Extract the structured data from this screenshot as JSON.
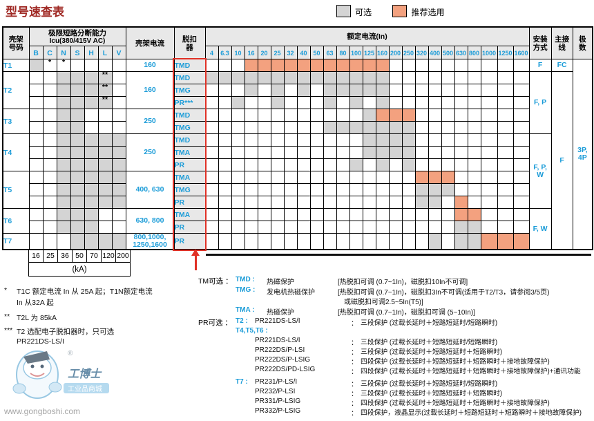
{
  "title": "型号速查表",
  "legend": {
    "optional_label": "可选",
    "recommended_label": "推荐选用"
  },
  "colors": {
    "blue": "#1b9cd8",
    "orange": "#f3a17f",
    "gray": "#d4d4d4",
    "header_bg": "#e8e8e8",
    "red": "#e03126",
    "title_red": "#a02a25"
  },
  "header": {
    "frame_no": "壳架号码",
    "icu_line1": "极限短路分断能力",
    "icu_line2": "Icu(380/415V AC)",
    "icu_cols": [
      "B",
      "C",
      "N",
      "S",
      "H",
      "L",
      "V"
    ],
    "frame_current": "壳架电流",
    "trip_unit": "脱扣器",
    "rated_current": "额定电流(In)",
    "rated_cols": [
      "4",
      "6.3",
      "10",
      "16",
      "20",
      "25",
      "32",
      "40",
      "50",
      "63",
      "80",
      "100",
      "125",
      "160",
      "200",
      "250",
      "320",
      "400",
      "500",
      "630",
      "800",
      "1000",
      "1250",
      "1600"
    ],
    "mounting": "安装方式",
    "wiring": "主接线",
    "poles": "极数"
  },
  "frames": [
    {
      "id": "T1",
      "current": [
        "160"
      ],
      "icu_gray": [
        "B"
      ],
      "icu_marks": {
        "C": "*",
        "N": "*"
      },
      "rows": [
        {
          "trip": "TMD",
          "gray": [],
          "orange": [
            "16",
            "20",
            "25",
            "32",
            "40",
            "50",
            "63",
            "80",
            "100",
            "125",
            "160"
          ]
        }
      ]
    },
    {
      "id": "T2",
      "current": [
        "160"
      ],
      "icu_gray": [
        "N",
        "S",
        "H",
        "L"
      ],
      "icu_marks": {
        "L": "**"
      },
      "rows": [
        {
          "trip": "TMD",
          "gray": [
            "4",
            "6.3",
            "10",
            "16",
            "20",
            "25",
            "32",
            "40",
            "50",
            "63",
            "80",
            "100",
            "125",
            "160"
          ],
          "orange": []
        },
        {
          "trip": "TMG",
          "gray": [
            "16",
            "25",
            "40",
            "63",
            "80",
            "100",
            "125",
            "160"
          ],
          "orange": []
        },
        {
          "trip": "PR***",
          "gray": [
            "10",
            "25",
            "63",
            "100",
            "160"
          ],
          "orange": []
        }
      ]
    },
    {
      "id": "T3",
      "current": [
        "250"
      ],
      "icu_gray": [
        "N",
        "S"
      ],
      "icu_marks": {},
      "rows": [
        {
          "trip": "TMD",
          "gray": [
            "125"
          ],
          "orange": [
            "160",
            "200",
            "250"
          ]
        },
        {
          "trip": "TMG",
          "gray": [
            "63",
            "80",
            "100",
            "125",
            "160",
            "200",
            "250"
          ],
          "orange": []
        }
      ]
    },
    {
      "id": "T4",
      "current": [
        "250"
      ],
      "icu_gray": [
        "N",
        "S",
        "H",
        "L",
        "V"
      ],
      "icu_marks": {},
      "rows": [
        {
          "trip": "TMD",
          "gray": [
            "125",
            "160",
            "200",
            "250"
          ],
          "orange": []
        },
        {
          "trip": "TMA",
          "gray": [
            "125",
            "160",
            "200",
            "250"
          ],
          "orange": []
        },
        {
          "trip": "PR",
          "gray": [
            "100",
            "160",
            "250"
          ],
          "orange": []
        }
      ]
    },
    {
      "id": "T5",
      "current": [
        "400, 630"
      ],
      "icu_gray": [
        "N",
        "S",
        "H",
        "L",
        "V"
      ],
      "icu_marks": {},
      "rows": [
        {
          "trip": "TMA",
          "gray": [],
          "orange": [
            "320",
            "400",
            "500"
          ]
        },
        {
          "trip": "TMG",
          "gray": [
            "320",
            "400",
            "500"
          ],
          "orange": []
        },
        {
          "trip": "PR",
          "gray": [
            "320",
            "400"
          ],
          "orange": [
            "630"
          ]
        }
      ]
    },
    {
      "id": "T6",
      "current": [
        "630, 800"
      ],
      "icu_gray": [
        "N",
        "S",
        "H"
      ],
      "icu_marks": {},
      "rows": [
        {
          "trip": "TMA",
          "gray": [],
          "orange": [
            "630",
            "800"
          ]
        },
        {
          "trip": "PR",
          "gray": [
            "630",
            "800"
          ],
          "orange": []
        }
      ]
    },
    {
      "id": "T7",
      "current": [
        "800,1000,",
        "1250,1600"
      ],
      "icu_gray": [
        "S",
        "H",
        "L",
        "V"
      ],
      "icu_marks": {},
      "rows": [
        {
          "trip": "PR",
          "gray": [
            "400",
            "630",
            "800"
          ],
          "orange": [
            "1000",
            "1250",
            "1600"
          ]
        }
      ]
    }
  ],
  "mounting_groups": [
    {
      "frames": "T1",
      "value": "F"
    },
    {
      "frames": "T2,T3",
      "value": "F, P"
    },
    {
      "frames": "T4,T5",
      "value": "F, P, W"
    },
    {
      "frames": "T6,T7",
      "value": "F, W"
    }
  ],
  "wiring_groups": [
    {
      "frames": "T1",
      "value": "FC"
    },
    {
      "frames": "T2-T7",
      "value": "F"
    }
  ],
  "poles_value": "3P, 4P",
  "ka_scale": {
    "values": [
      "16",
      "25",
      "36",
      "50",
      "70",
      "120",
      "200"
    ],
    "unit": "(kA)"
  },
  "footnotes": [
    {
      "mark": "*",
      "lines": [
        "T1C 额定电流 In 从 25A 起；T1N额定电流",
        "In 从32A 起"
      ]
    },
    {
      "mark": "**",
      "lines": [
        "T2L 为 85kA"
      ]
    },
    {
      "mark": "***",
      "lines": [
        "T2 选配电子脱扣器时，只可选",
        "PR221DS-LS/I"
      ]
    }
  ],
  "tm_options": {
    "label": "TM可选 ：",
    "items": [
      {
        "name": "TMD :",
        "type": "热磁保护",
        "detail": "[热脱扣可调 (0.7~1In)，磁脱扣10In不可调]",
        "detail2": ""
      },
      {
        "name": "TMG :",
        "type": "发电机热磁保护",
        "detail": "[热脱扣可调 (0.7~1In)，磁脱扣3In不可调(适用于T2/T3，请参阅3/5页)",
        "detail2": "或磁脱扣可调2.5~5In(T5)]"
      },
      {
        "name": "TMA :",
        "type": "热磁保护",
        "detail": "[热脱扣可调 (0.7~1In)，磁脱扣可调 (5~10In)]",
        "detail2": ""
      }
    ]
  },
  "pr_options": {
    "label": "PR可选 ：",
    "t2_tag": "T2 :",
    "t2_name": "PR221DS-LS/I",
    "t2_desc": "三段保护 (过载长延时＋短路短延时/短路瞬时)",
    "groups": [
      {
        "tag": "T4,T5,T6 :",
        "items": [
          {
            "name": "PR221DS-LS/I",
            "desc": "三段保护 (过载长延时＋短路短延时/短路瞬时)"
          },
          {
            "name": "PR222DS/P-LSI",
            "desc": "三段保护 (过载长延时＋短路短延时＋短路瞬时)"
          },
          {
            "name": "PR222DS/P-LSIG",
            "desc": "四段保护 (过载长延时＋短路短延时＋短路瞬时＋接地故障保护)"
          },
          {
            "name": "PR222DS/PD-LSIG",
            "desc": "四段保护 (过载长延时＋短路短延时＋短路瞬时＋接地故障保护)+通讯功能"
          }
        ]
      },
      {
        "tag": "T7 :",
        "items": [
          {
            "name": "PR231/P-LS/I",
            "desc": "三段保护 (过载长延时＋短路短延时/短路瞬时)"
          },
          {
            "name": "PR232/P-LSI",
            "desc": "三段保护 (过载长延时＋短路短延时＋短路瞬时)"
          },
          {
            "name": "PR331/P-LSIG",
            "desc": "四段保护 (过载长延时＋短路短延时＋短路瞬时＋接地故障保护)"
          },
          {
            "name": "PR332/P-LSIG",
            "desc": "四段保护，液晶显示(过载长延时＋短路短延时＋短路瞬时＋接地故障保护)"
          }
        ]
      }
    ]
  },
  "watermark": {
    "brand": "工博士",
    "tagline": "工业品商城",
    "url": "www.gongboshi.com",
    "reg": "®"
  }
}
